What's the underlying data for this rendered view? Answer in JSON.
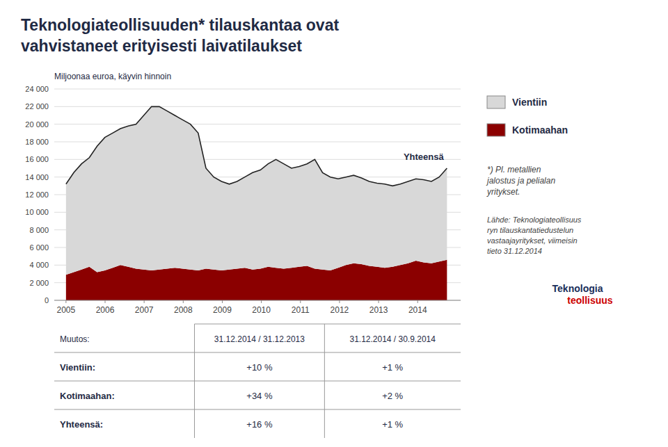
{
  "chart_data": {
    "type": "area",
    "title": "Teknologiateollisuuden* tilauskantaa ovat\nvahvistaneet erityisesti laivatilaukset",
    "subtitle": "Miljoonaa euroa, käyvin hinnoin",
    "x": [
      2005,
      2005.199,
      2005.398,
      2005.5969,
      2005.7959,
      2005.9949,
      2006.1939,
      2006.3929,
      2006.5918,
      2006.7908,
      2006.9898,
      2007.1888,
      2007.3878,
      2007.5867,
      2007.7857,
      2007.9847,
      2008.1837,
      2008.3827,
      2008.5816,
      2008.7806,
      2008.9796,
      2009.1786,
      2009.3776,
      2009.5765,
      2009.7755,
      2009.9745,
      2010.1735,
      2010.3724,
      2010.5714,
      2010.7704,
      2010.9694,
      2011.1684,
      2011.3673,
      2011.5663,
      2011.7653,
      2011.9643,
      2012.1633,
      2012.3622,
      2012.5612,
      2012.7602,
      2012.9592,
      2013.1582,
      2013.3571,
      2013.5561,
      2013.7551,
      2013.9541,
      2014.1531,
      2014.352,
      2014.551,
      2014.75
    ],
    "stacked": true,
    "series": [
      {
        "name": "Kotimaahan",
        "type": "area",
        "color": "#8b0000",
        "values": [
          2900,
          3200,
          3500,
          3800,
          3200,
          3400,
          3700,
          4000,
          3800,
          3600,
          3500,
          3400,
          3500,
          3600,
          3700,
          3600,
          3500,
          3400,
          3600,
          3500,
          3400,
          3500,
          3600,
          3700,
          3500,
          3600,
          3800,
          3700,
          3600,
          3700,
          3800,
          3900,
          3600,
          3500,
          3400,
          3700,
          4000,
          4200,
          4100,
          3900,
          3800,
          3700,
          3800,
          4000,
          4200,
          4500,
          4300,
          4200,
          4400,
          4600
        ]
      },
      {
        "name": "Vientiin",
        "type": "area",
        "color": "#d8d8d8",
        "values": [
          10300,
          11300,
          12000,
          12400,
          14300,
          15100,
          15300,
          15500,
          16000,
          16400,
          17500,
          18600,
          18500,
          17900,
          17300,
          16900,
          16500,
          15600,
          11400,
          10500,
          10100,
          9700,
          9900,
          10300,
          11000,
          11200,
          11700,
          12300,
          11900,
          11300,
          11400,
          11600,
          12400,
          11000,
          10600,
          10100,
          10000,
          10000,
          9800,
          9600,
          9500,
          9500,
          9200,
          9200,
          9300,
          9300,
          9400,
          9300,
          9600,
          10400
        ]
      },
      {
        "name": "Yhteensä",
        "type": "line",
        "color": "#222222",
        "values": [
          13200,
          14500,
          15500,
          16200,
          17500,
          18500,
          19000,
          19500,
          19800,
          20000,
          21000,
          22000,
          22000,
          21500,
          21000,
          20500,
          20000,
          19000,
          15000,
          14000,
          13500,
          13200,
          13500,
          14000,
          14500,
          14800,
          15500,
          16000,
          15500,
          15000,
          15200,
          15500,
          16000,
          14500,
          14000,
          13800,
          14000,
          14200,
          13900,
          13500,
          13300,
          13200,
          13000,
          13200,
          13500,
          13800,
          13700,
          13500,
          14000,
          15000
        ]
      }
    ],
    "xlim": [
      2004.7,
      2015.1
    ],
    "xticks": [
      2005,
      2006,
      2007,
      2008,
      2009,
      2010,
      2011,
      2012,
      2013,
      2014
    ],
    "ylim": [
      0,
      24000
    ],
    "yticks": [
      0,
      {
        "value": 2000,
        "label": "2 000"
      },
      {
        "value": 4000,
        "label": "4 000"
      },
      {
        "value": 6000,
        "label": "6 000"
      },
      {
        "value": 8000,
        "label": "8 000"
      },
      {
        "value": 10000,
        "label": "10 000"
      },
      {
        "value": 12000,
        "label": "12 000"
      },
      {
        "value": 14000,
        "label": "14 000"
      },
      {
        "value": 16000,
        "label": "16 000"
      },
      {
        "value": 18000,
        "label": "18 000"
      },
      {
        "value": 20000,
        "label": "20 000"
      },
      {
        "value": 22000,
        "label": "22 000"
      },
      {
        "value": 24000,
        "label": "24 000"
      }
    ],
    "grid": true,
    "legend": "right",
    "footnote": "*) Pl. metallien\njalostus ja pelialan\nyritykset.",
    "source": "Lähde: Teknologiateollisuus\nryn tilauskantatiedustelun\nvastaajayritykset, viimeisin\ntieto 31.12.2014",
    "logo": {
      "lines": [
        "Teknologia",
        "teollisuus"
      ],
      "colors": [
        "#1a2e5a",
        "#cc0000"
      ]
    },
    "table": [
      [
        "Muutos:",
        "31.12.2014 / 31.12.2013",
        "31.12.2014 / 30.9.2014"
      ],
      [
        "Vientiin:",
        "+10 %",
        "+1 %"
      ],
      [
        "Kotimaahan:",
        "+34 %",
        "+2 %"
      ],
      [
        "Yhteensä:",
        "+16 %",
        "+1 %"
      ]
    ]
  }
}
